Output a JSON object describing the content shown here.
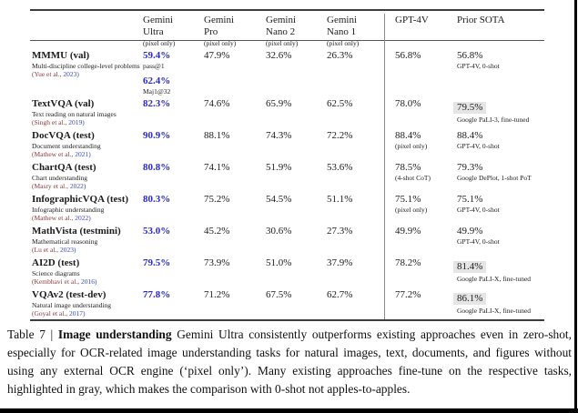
{
  "colors": {
    "best_value_blue": "#2a2ad0",
    "citation_author": "#8b3a3a",
    "citation_year": "#3649c9",
    "sota_highlight_bg": "#e5e5e5"
  },
  "table": {
    "columns": [
      {
        "line1": "",
        "line2": "",
        "note": ""
      },
      {
        "line1": "Gemini",
        "line2": "Ultra",
        "note": "(pixel only)"
      },
      {
        "line1": "Gemini",
        "line2": "Pro",
        "note": "(pixel only)"
      },
      {
        "line1": "Gemini",
        "line2": "Nano 2",
        "note": "(pixel only)"
      },
      {
        "line1": "Gemini",
        "line2": "Nano 1",
        "note": "(pixel only)"
      },
      {
        "line1": "GPT-4V",
        "line2": "",
        "note": ""
      },
      {
        "line1": "Prior SOTA",
        "line2": "",
        "note": ""
      }
    ],
    "rows": [
      {
        "name": "MMMU (val)",
        "subtitle": "Multi-discipline college-level problems",
        "cite_author": "(Yue et al.,",
        "cite_year": "2023)",
        "ultra": "59.4%",
        "ultra_note": "pass@1",
        "ultra2": "62.4%",
        "ultra2_note": "Maj1@32",
        "pro": "47.9%",
        "nano2": "32.6%",
        "nano1": "26.3%",
        "gpt4v": "56.8%",
        "gpt4v_note": "",
        "sota": "56.8%",
        "sota_note": "GPT-4V, 0-shot",
        "sota_highlight": false
      },
      {
        "name": "TextVQA (val)",
        "subtitle": "Text reading on natural images",
        "cite_author": "(Singh et al.,",
        "cite_year": "2019)",
        "ultra": "82.3%",
        "ultra_note": "",
        "pro": "74.6%",
        "nano2": "65.9%",
        "nano1": "62.5%",
        "gpt4v": "78.0%",
        "gpt4v_note": "",
        "sota": "79.5%",
        "sota_note": "Google PaLI-3, fine-tuned",
        "sota_highlight": true
      },
      {
        "name": "DocVQA (test)",
        "subtitle": "Document understanding",
        "cite_author": "(Mathew et al.,",
        "cite_year": "2021)",
        "ultra": "90.9%",
        "ultra_note": "",
        "pro": "88.1%",
        "nano2": "74.3%",
        "nano1": "72.2%",
        "gpt4v": "88.4%",
        "gpt4v_note": "(pixel only)",
        "sota": "88.4%",
        "sota_note": "GPT-4V, 0-shot",
        "sota_highlight": false
      },
      {
        "name": "ChartQA (test)",
        "subtitle": "Chart understanding",
        "cite_author": "(Masry et al.,",
        "cite_year": "2022)",
        "ultra": "80.8%",
        "ultra_note": "",
        "pro": "74.1%",
        "nano2": "51.9%",
        "nano1": "53.6%",
        "gpt4v": "78.5%",
        "gpt4v_note": "(4-shot CoT)",
        "sota": "79.3%",
        "sota_note": "Google DePlot, 1-shot PoT",
        "sota_highlight": false
      },
      {
        "name": "InfographicVQA (test)",
        "subtitle": "Infographic understanding",
        "cite_author": "(Mathew et al.,",
        "cite_year": "2022)",
        "ultra": "80.3%",
        "ultra_note": "",
        "pro": "75.2%",
        "nano2": "54.5%",
        "nano1": "51.1%",
        "gpt4v": "75.1%",
        "gpt4v_note": "(pixel only)",
        "sota": "75.1%",
        "sota_note": "GPT-4V, 0-shot",
        "sota_highlight": false
      },
      {
        "name": "MathVista (testmini)",
        "subtitle": "Mathematical reasoning",
        "cite_author": "(Lu et al.,",
        "cite_year": "2023)",
        "ultra": "53.0%",
        "ultra_note": "",
        "pro": "45.2%",
        "nano2": "30.6%",
        "nano1": "27.3%",
        "gpt4v": "49.9%",
        "gpt4v_note": "",
        "sota": "49.9%",
        "sota_note": "GPT-4V, 0-shot",
        "sota_highlight": false
      },
      {
        "name": "AI2D (test)",
        "subtitle": "Science diagrams",
        "cite_author": "(Kembhavi et al.,",
        "cite_year": "2016)",
        "ultra": "79.5%",
        "ultra_note": "",
        "pro": "73.9%",
        "nano2": "51.0%",
        "nano1": "37.9%",
        "gpt4v": "78.2%",
        "gpt4v_note": "",
        "sota": "81.4%",
        "sota_note": "Google PaLI-X, fine-tuned",
        "sota_highlight": true
      },
      {
        "name": "VQAv2 (test-dev)",
        "subtitle": "Natural image understanding",
        "cite_author": "(Goyal et al.,",
        "cite_year": "2017)",
        "ultra": "77.8%",
        "ultra_note": "",
        "pro": "71.2%",
        "nano2": "67.5%",
        "nano1": "62.7%",
        "gpt4v": "77.2%",
        "gpt4v_note": "",
        "sota": "86.1%",
        "sota_note": "Google PaLI-X, fine-tuned",
        "sota_highlight": true
      }
    ]
  },
  "caption": {
    "prefix": "Table 7 | ",
    "bold": "Image understanding",
    "rest": " Gemini Ultra consistently outperforms existing approaches even in zero-shot, especially for OCR-related image understanding tasks for natural images, text, documents, and figures without using any external OCR engine (‘pixel only’). Many existing approaches fine-tune on the respective tasks, highlighted in gray, which makes the comparison with 0-shot not apples-to-apples."
  }
}
